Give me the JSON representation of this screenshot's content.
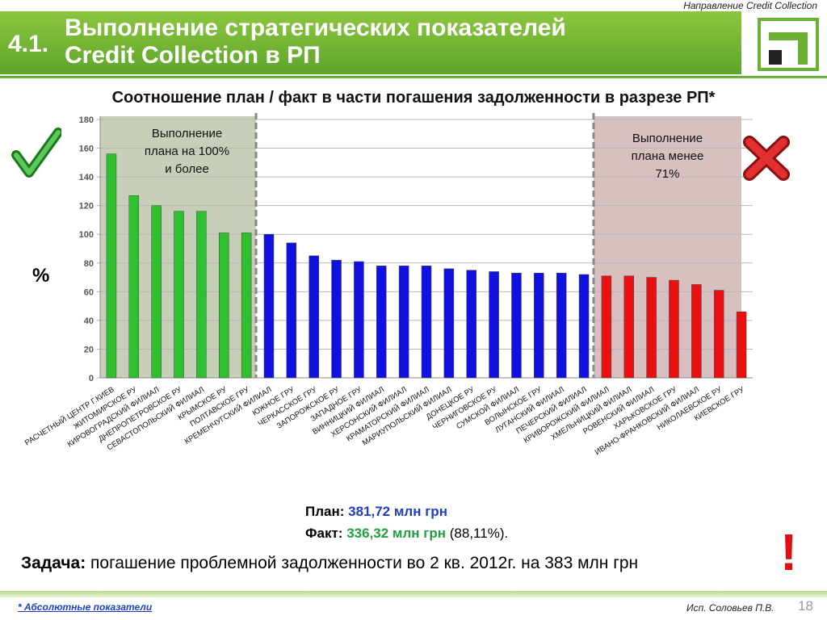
{
  "header": {
    "direction_label": "Направление Credit Collection",
    "section_number": "4.1.",
    "title_line1": "Выполнение стратегических показателей",
    "title_line2": "Credit Collection в РП"
  },
  "chart_title": "Соотношение план / факт в части погашения задолженности в разрезе РП*",
  "y_unit_label": "%",
  "zones": {
    "good_label": [
      "Выполнение",
      "плана на 100%",
      "и более"
    ],
    "bad_label": [
      "Выполнение",
      "плана менее",
      "71%"
    ]
  },
  "summary": {
    "plan_label": "План:",
    "plan_value": "381,72 млн грн",
    "fact_label": "Факт:",
    "fact_value": "336,32 млн грн",
    "fact_pct": "(88,11%)."
  },
  "task": {
    "label": "Задача:",
    "text": "погашение проблемной задолженности во 2 кв. 2012г. на 383 млн грн"
  },
  "footer": {
    "footnote": "* Абсолютные показатели",
    "author": "Исп. Соловьев П.В.",
    "page": "18"
  },
  "colors": {
    "brand_green": "#6bb032",
    "good": "#2ec02e",
    "mid": "#1010e0",
    "bad": "#e81010",
    "good_zone": "#c8cfb8",
    "bad_zone": "#d8c0c0"
  },
  "icons": {
    "check": "check-icon",
    "cross": "cross-icon",
    "exclaim": "exclamation-icon",
    "logo": "bank-logo-icon"
  },
  "chart_data": {
    "type": "bar",
    "title": "Соотношение план / факт в части погашения задолженности в разрезе РП*",
    "ylabel": "%",
    "ylim": [
      0,
      180
    ],
    "yticks": [
      0,
      20,
      40,
      60,
      80,
      100,
      120,
      140,
      160,
      180
    ],
    "grid": true,
    "categories": [
      "РАСЧЕТНЫЙ ЦЕНТР Г.КИЕВ",
      "ЖИТОМИРСКОЕ РУ",
      "КИРОВОГРАДСКИЙ ФИЛИАЛ",
      "ДНЕПРОПЕТРОВСКОЕ РУ",
      "СЕВАСТОПОЛЬСКИЙ ФИЛИАЛ",
      "КРЫМСКОЕ РУ",
      "ПОЛТАВСКОЕ ГРУ",
      "КРЕМЕНЧУГСКИЙ ФИЛИАЛ",
      "ЮЖНОЕ ГРУ",
      "ЧЕРКАССКОЕ ГРУ",
      "ЗАПОРОЖСКОЕ РУ",
      "ЗАПАДНОЕ ГРУ",
      "ВИННИЦКИЙ ФИЛИАЛ",
      "ХЕРСОНСКИЙ ФИЛИАЛ",
      "КРАМАТОРСКИЙ ФИЛИАЛ",
      "МАРИУПОЛЬСКИЙ ФИЛИАЛ",
      "ДОНЕЦКОЕ РУ",
      "ЧЕРНИГОВСКОЕ РУ",
      "СУМСКОЙ ФИЛИАЛ",
      "ВОЛЫНСКОЕ ГРУ",
      "ЛУГАНСКИЙ ФИЛИАЛ",
      "ПЕЧЕРСКИЙ ФИЛИАЛ",
      "КРИВОРОЖСКИЙ ФИЛИАЛ",
      "ХМЕЛЬНИЦКИЙ ФИЛИАЛ",
      "РОВЕНСКИЙ ФИЛИАЛ",
      "ХАРЬКОВСКОЕ ГРУ",
      "ИВАНО-ФРАНКОВСКИЙ ФИЛИАЛ",
      "НИКОЛАЕВСКОЕ РУ",
      "КИЕВСКОЕ ГРУ"
    ],
    "values": [
      156,
      127,
      120,
      116,
      116,
      101,
      101,
      100,
      94,
      85,
      82,
      81,
      78,
      78,
      78,
      76,
      75,
      74,
      73,
      73,
      73,
      72,
      71,
      71,
      70,
      68,
      65,
      61,
      46
    ],
    "groups": [
      "good",
      "good",
      "good",
      "good",
      "good",
      "good",
      "good",
      "mid",
      "mid",
      "mid",
      "mid",
      "mid",
      "mid",
      "mid",
      "mid",
      "mid",
      "mid",
      "mid",
      "mid",
      "mid",
      "mid",
      "mid",
      "bad",
      "bad",
      "bad",
      "bad",
      "bad",
      "bad",
      "bad"
    ]
  }
}
